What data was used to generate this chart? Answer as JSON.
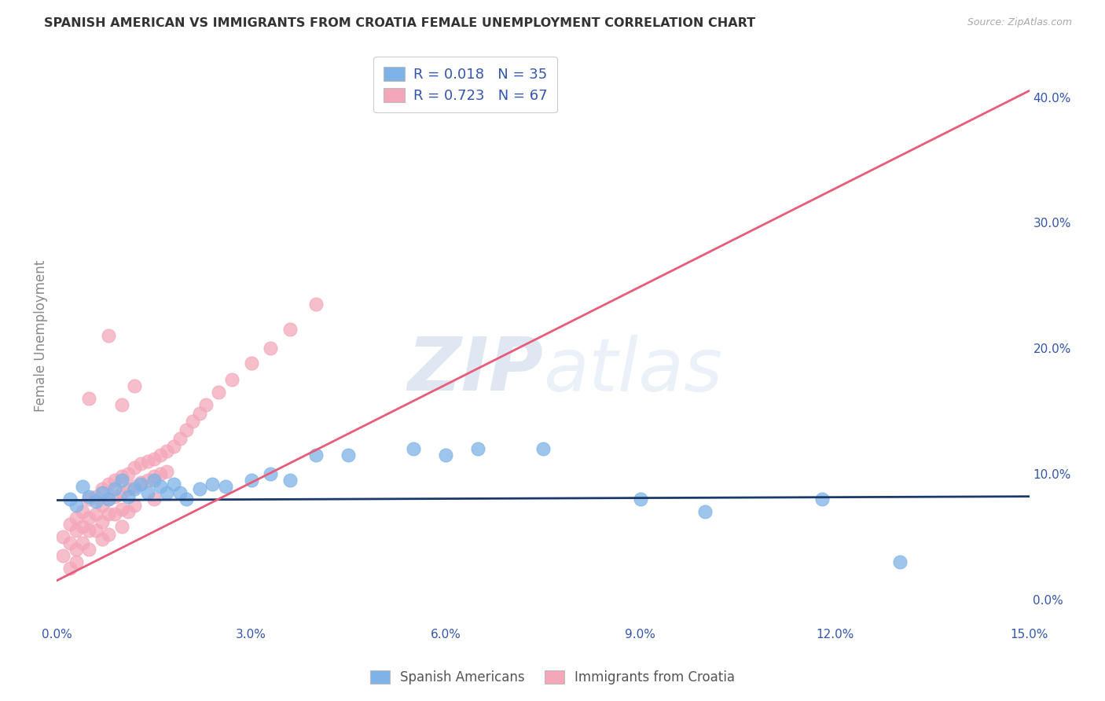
{
  "title": "SPANISH AMERICAN VS IMMIGRANTS FROM CROATIA FEMALE UNEMPLOYMENT CORRELATION CHART",
  "source": "Source: ZipAtlas.com",
  "ylabel": "Female Unemployment",
  "xlim": [
    0.0,
    0.15
  ],
  "ylim": [
    -0.02,
    0.44
  ],
  "blue_color": "#7EB3E8",
  "pink_color": "#F4A7B9",
  "blue_line_color": "#1A3A6B",
  "pink_line_color": "#E85B7A",
  "legend_text_color": "#3355AA",
  "watermark_zip": "ZIP",
  "watermark_atlas": "atlas",
  "R_blue": 0.018,
  "N_blue": 35,
  "R_pink": 0.723,
  "N_pink": 67,
  "blue_scatter_x": [
    0.002,
    0.003,
    0.004,
    0.005,
    0.006,
    0.007,
    0.008,
    0.009,
    0.01,
    0.011,
    0.012,
    0.013,
    0.014,
    0.015,
    0.016,
    0.017,
    0.018,
    0.019,
    0.02,
    0.022,
    0.024,
    0.026,
    0.03,
    0.033,
    0.036,
    0.04,
    0.045,
    0.055,
    0.06,
    0.065,
    0.075,
    0.09,
    0.1,
    0.118,
    0.13
  ],
  "blue_scatter_y": [
    0.08,
    0.075,
    0.09,
    0.082,
    0.078,
    0.085,
    0.08,
    0.088,
    0.095,
    0.082,
    0.088,
    0.092,
    0.085,
    0.095,
    0.09,
    0.085,
    0.092,
    0.085,
    0.08,
    0.088,
    0.092,
    0.09,
    0.095,
    0.1,
    0.095,
    0.115,
    0.115,
    0.12,
    0.115,
    0.12,
    0.12,
    0.08,
    0.07,
    0.08,
    0.03
  ],
  "pink_scatter_x": [
    0.001,
    0.001,
    0.002,
    0.002,
    0.002,
    0.003,
    0.003,
    0.003,
    0.003,
    0.004,
    0.004,
    0.004,
    0.005,
    0.005,
    0.005,
    0.005,
    0.006,
    0.006,
    0.006,
    0.007,
    0.007,
    0.007,
    0.007,
    0.008,
    0.008,
    0.008,
    0.008,
    0.009,
    0.009,
    0.009,
    0.01,
    0.01,
    0.01,
    0.01,
    0.011,
    0.011,
    0.011,
    0.012,
    0.012,
    0.012,
    0.013,
    0.013,
    0.014,
    0.014,
    0.015,
    0.015,
    0.015,
    0.016,
    0.016,
    0.017,
    0.017,
    0.018,
    0.019,
    0.02,
    0.021,
    0.022,
    0.023,
    0.025,
    0.027,
    0.03,
    0.033,
    0.036,
    0.04,
    0.008,
    0.005,
    0.01,
    0.012
  ],
  "pink_scatter_y": [
    0.05,
    0.035,
    0.06,
    0.045,
    0.025,
    0.065,
    0.055,
    0.04,
    0.03,
    0.07,
    0.058,
    0.045,
    0.08,
    0.065,
    0.055,
    0.04,
    0.082,
    0.068,
    0.055,
    0.088,
    0.075,
    0.062,
    0.048,
    0.092,
    0.08,
    0.068,
    0.052,
    0.095,
    0.082,
    0.068,
    0.098,
    0.085,
    0.072,
    0.058,
    0.1,
    0.088,
    0.07,
    0.105,
    0.09,
    0.075,
    0.108,
    0.093,
    0.11,
    0.095,
    0.112,
    0.098,
    0.08,
    0.115,
    0.1,
    0.118,
    0.102,
    0.122,
    0.128,
    0.135,
    0.142,
    0.148,
    0.155,
    0.165,
    0.175,
    0.188,
    0.2,
    0.215,
    0.235,
    0.21,
    0.16,
    0.155,
    0.17
  ],
  "blue_line_x": [
    0.0,
    0.15
  ],
  "blue_line_y": [
    0.079,
    0.082
  ],
  "pink_line_x": [
    0.0,
    0.15
  ],
  "pink_line_y": [
    0.015,
    0.405
  ],
  "legend_label_blue": "Spanish Americans",
  "legend_label_pink": "Immigrants from Croatia",
  "background_color": "#FFFFFF",
  "grid_color": "#DDDDDD",
  "xtick_positions": [
    0.0,
    0.03,
    0.06,
    0.09,
    0.12,
    0.15
  ],
  "xtick_labels": [
    "0.0%",
    "3.0%",
    "6.0%",
    "9.0%",
    "12.0%",
    "15.0%"
  ],
  "ytick_right_positions": [
    0.0,
    0.1,
    0.2,
    0.3,
    0.4
  ],
  "ytick_right_labels": [
    "0.0%",
    "10.0%",
    "20.0%",
    "30.0%",
    "40.0%"
  ]
}
